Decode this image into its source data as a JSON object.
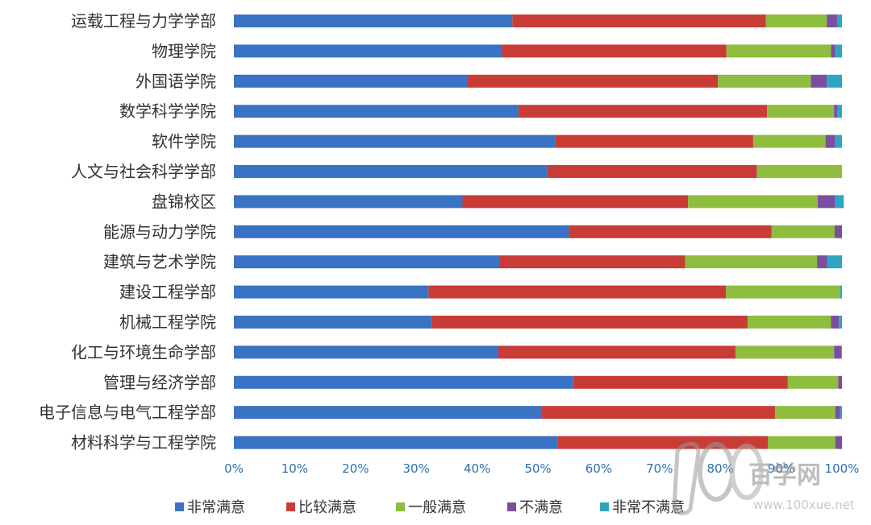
{
  "chart_data": {
    "type": "bar",
    "orientation": "horizontal",
    "stacked": "percent",
    "categories": [
      "运载工程与力学学部",
      "物理学院",
      "外国语学院",
      "数学科学学院",
      "软件学院",
      "人文与社会科学学部",
      "盘锦校区",
      "能源与动力学院",
      "建筑与艺术学院",
      "建设工程学部",
      "机械工程学院",
      "化工与环境生命学部",
      "管理与经济学部",
      "电子信息与电气工程学部",
      "材料科学与工程学院"
    ],
    "series": [
      {
        "name": "非常满意",
        "color": "#3a72c4",
        "values": [
          45.8,
          44.1,
          38.4,
          46.8,
          52.9,
          51.5,
          37.6,
          55.1,
          43.7,
          32.0,
          32.6,
          43.5,
          55.8,
          50.6,
          53.3
        ]
      },
      {
        "name": "比较满意",
        "color": "#c93c36",
        "values": [
          41.7,
          36.9,
          41.2,
          40.9,
          32.5,
          34.5,
          37.1,
          33.3,
          30.5,
          48.9,
          51.9,
          39.0,
          35.3,
          38.4,
          34.5
        ]
      },
      {
        "name": "一般满意",
        "color": "#8ebd3f",
        "values": [
          10.0,
          17.2,
          15.3,
          11.0,
          11.9,
          14.0,
          21.3,
          10.4,
          21.7,
          18.8,
          13.7,
          16.2,
          8.3,
          9.9,
          11.1
        ]
      },
      {
        "name": "不满意",
        "color": "#7a4fa0",
        "values": [
          1.7,
          0.7,
          2.6,
          0.5,
          1.6,
          0.0,
          2.9,
          1.2,
          1.7,
          0.0,
          1.3,
          1.2,
          0.6,
          0.8,
          1.1
        ]
      },
      {
        "name": "非常不满意",
        "color": "#2ea5c2",
        "values": [
          0.8,
          1.1,
          2.5,
          0.8,
          1.1,
          0.0,
          1.4,
          0.0,
          2.4,
          0.3,
          0.5,
          0.1,
          0.0,
          0.3,
          0.0
        ]
      }
    ],
    "xlim": [
      0,
      100
    ],
    "xticks": [
      "0%",
      "10%",
      "20%",
      "30%",
      "40%",
      "50%",
      "60%",
      "70%",
      "80%",
      "90%",
      "100%"
    ],
    "grid": false,
    "legend": "bottom",
    "title": "",
    "xlabel": "",
    "ylabel": ""
  },
  "watermark": {
    "logo_text": "100",
    "brand_text": "百学网",
    "url": "www.100xue.net"
  }
}
